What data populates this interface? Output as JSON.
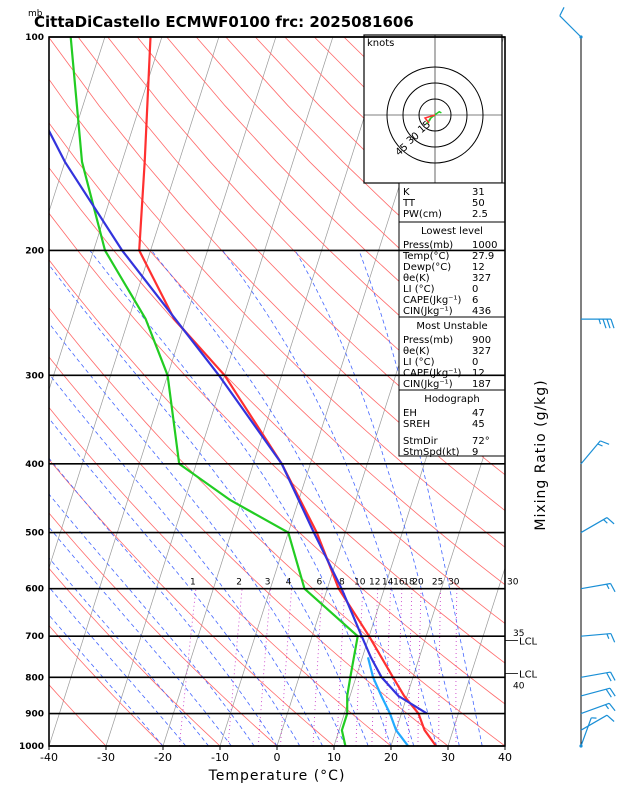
{
  "header": {
    "unit": "mb",
    "title": "CittaDiCastello ECMWF0100 frc: 2025081606"
  },
  "colors": {
    "temperature": "#ff3030",
    "dewpoint": "#22cc22",
    "parcel": "#3333dd",
    "wet_parcel": "#22aaff",
    "isotherm": "#999999",
    "dry_adiabat": "#ff6a6a",
    "moist_adiabat": "#4466ff",
    "mixing_ratio": "#cc44cc",
    "wind": "#1a8fd6",
    "mixing_label": "#aa22aa"
  },
  "chart_data": {
    "type": "line",
    "title": "CittaDiCastello ECMWF0100 frc: 2025081606",
    "xlabel": "Temperature (°C)",
    "ylabel": "mb",
    "right_label": "Mixing Ratio (g/kg)",
    "xlim": [
      -40,
      40
    ],
    "ylim": [
      1000,
      100
    ],
    "y_scale": "log",
    "x_ticks": [
      "-40",
      "-30",
      "-20",
      "-10",
      "0",
      "10",
      "20",
      "30",
      "40"
    ],
    "y_ticks": [
      "100",
      "200",
      "300",
      "400",
      "500",
      "600",
      "700",
      "800",
      "900",
      "1000"
    ],
    "mixing_ratio_labels": [
      "1",
      "2",
      "3",
      "4",
      "6",
      "8",
      "10",
      "12",
      "14",
      "16",
      "18",
      "20",
      "25",
      "30"
    ],
    "mixing_ratio_values": [
      1,
      2,
      3,
      4,
      6,
      8,
      10,
      12,
      14,
      16,
      18,
      20,
      25,
      30
    ],
    "series": [
      {
        "key": "temperature",
        "points": [
          [
            1000,
            27.9
          ],
          [
            950,
            25
          ],
          [
            900,
            23
          ],
          [
            850,
            19.5
          ],
          [
            800,
            16.5
          ],
          [
            700,
            10
          ],
          [
            600,
            2
          ],
          [
            500,
            -5
          ],
          [
            400,
            -15
          ],
          [
            300,
            -30
          ],
          [
            250,
            -42
          ],
          [
            200,
            -52
          ],
          [
            150,
            -56
          ],
          [
            100,
            -62
          ]
        ]
      },
      {
        "key": "dewpoint",
        "points": [
          [
            1000,
            12
          ],
          [
            950,
            10.5
          ],
          [
            900,
            10.5
          ],
          [
            850,
            9.5
          ],
          [
            800,
            9
          ],
          [
            700,
            8
          ],
          [
            600,
            -4
          ],
          [
            500,
            -10
          ],
          [
            450,
            -22
          ],
          [
            400,
            -33
          ],
          [
            300,
            -40
          ],
          [
            250,
            -47
          ],
          [
            200,
            -58
          ],
          [
            150,
            -67
          ],
          [
            100,
            -76
          ]
        ]
      },
      {
        "key": "parcel",
        "points": [
          [
            900,
            24.5
          ],
          [
            850,
            18.5
          ],
          [
            800,
            14.5
          ],
          [
            750,
            11.5
          ],
          [
            700,
            8.7
          ],
          [
            600,
            2.5
          ],
          [
            500,
            -5.5
          ],
          [
            400,
            -15
          ],
          [
            300,
            -31
          ],
          [
            200,
            -55
          ],
          [
            150,
            -70
          ],
          [
            110,
            -84
          ]
        ]
      },
      {
        "key": "wet_parcel",
        "points": [
          [
            1000,
            23
          ],
          [
            950,
            20
          ],
          [
            900,
            18
          ],
          [
            850,
            15.5
          ],
          [
            800,
            13
          ],
          [
            750,
            11
          ]
        ]
      }
    ],
    "winds": [
      {
        "p": 1000,
        "dir": 20,
        "speed": 5
      },
      {
        "p": 950,
        "dir": 60,
        "speed": 10
      },
      {
        "p": 900,
        "dir": 70,
        "speed": 15
      },
      {
        "p": 850,
        "dir": 75,
        "speed": 20
      },
      {
        "p": 800,
        "dir": 80,
        "speed": 20
      },
      {
        "p": 700,
        "dir": 85,
        "speed": 15
      },
      {
        "p": 600,
        "dir": 80,
        "speed": 15
      },
      {
        "p": 500,
        "dir": 60,
        "speed": 15
      },
      {
        "p": 400,
        "dir": 40,
        "speed": 15
      },
      {
        "p": 250,
        "dir": 90,
        "speed": 35
      },
      {
        "p": 100,
        "dir": 315,
        "speed": 10
      }
    ],
    "levels": {
      "lcl_labels": [
        "LCL",
        "LCL"
      ],
      "lcl_pressures": [
        710,
        790
      ],
      "mixing_markers": [
        {
          "p": 700,
          "text": "35"
        },
        {
          "p": 830,
          "text": "40"
        }
      ]
    },
    "hodograph": {
      "unit_label": "knots",
      "ring_labels": [
        "15",
        "30",
        "45"
      ],
      "ring_values": [
        15,
        30,
        45
      ],
      "points": [
        [
          0,
          0
        ],
        [
          -3,
          -2
        ],
        [
          -5,
          -4
        ],
        [
          -6,
          -6
        ],
        [
          -8,
          -8
        ],
        [
          -5,
          -5
        ],
        [
          -4,
          -3
        ],
        [
          1,
          1
        ],
        [
          4,
          3
        ],
        [
          6,
          2
        ]
      ]
    }
  },
  "indices": {
    "rows1": [
      {
        "k": "K",
        "v": "31"
      },
      {
        "k": "TT",
        "v": "50"
      },
      {
        "k": "PW(cm)",
        "v": "2.5"
      }
    ],
    "lowest_title": "Lowest level",
    "lowest": [
      {
        "k": "Press(mb)",
        "v": "1000"
      },
      {
        "k": "Temp(°C)",
        "v": "27.9"
      },
      {
        "k": "Dewp(°C)",
        "v": "12"
      },
      {
        "k": "θe(K)",
        "v": "327"
      },
      {
        "k": "LI (°C)",
        "v": "0"
      },
      {
        "k": "CAPE(Jkg⁻¹)",
        "v": "6"
      },
      {
        "k": "CIN(Jkg⁻¹)",
        "v": "436"
      }
    ],
    "unstable_title": "Most Unstable",
    "unstable": [
      {
        "k": "Press(mb)",
        "v": "900"
      },
      {
        "k": "θe(K)",
        "v": "327"
      },
      {
        "k": "LI (°C)",
        "v": "0"
      },
      {
        "k": "CAPE(Jkg⁻¹)",
        "v": "12"
      },
      {
        "k": "CIN(Jkg⁻¹)",
        "v": "187"
      }
    ],
    "hodo_title": "Hodograph",
    "hodo": [
      {
        "k": "EH",
        "v": "47"
      },
      {
        "k": "SREH",
        "v": "45"
      },
      {
        "k": "StmDir",
        "v": "72°"
      },
      {
        "k": "StmSpd(kt)",
        "v": "9"
      }
    ]
  }
}
